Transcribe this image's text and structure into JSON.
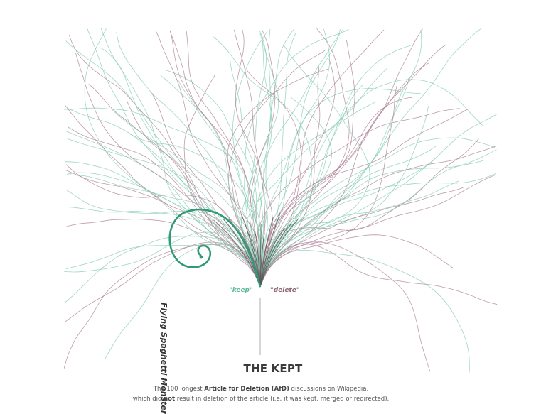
{
  "title": "THE KEPT",
  "caption": {
    "line1_pre": "The 100 longest ",
    "line1_bold": "Article for Deletion (AfD)",
    "line1_post": " discussions on Wikipedia,",
    "line2_pre": "which did ",
    "line2_bold": "not",
    "line2_post": " result in deletion of the  article (i.e. it was kept, merged or redirected)."
  },
  "labels": {
    "keep": "\"keep\"",
    "delete": "\"delete\""
  },
  "highlight_label": "Flying Spaghetti Monster",
  "colors": {
    "keep": "#7fc9ad",
    "delete": "#a87a90",
    "highlight": "#2e9a76",
    "stem": "#555555"
  }
}
